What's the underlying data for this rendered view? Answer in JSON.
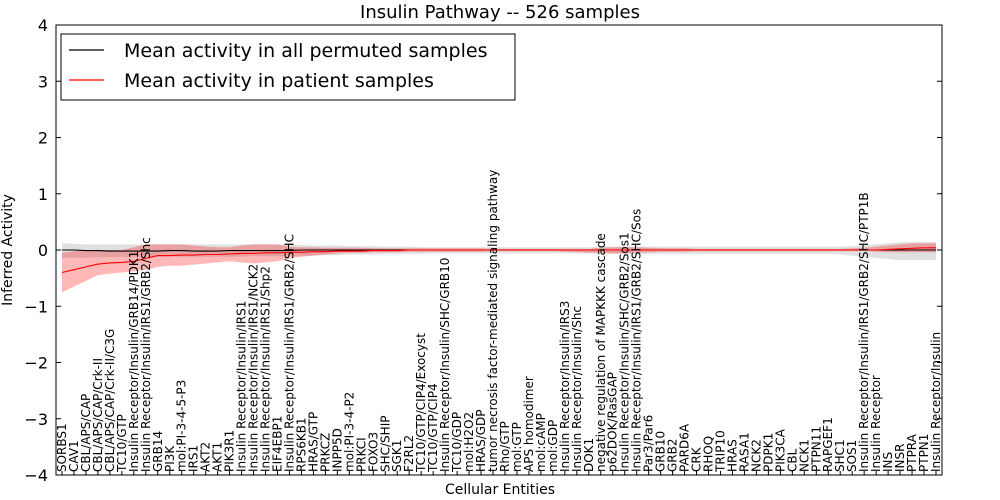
{
  "chart_data": {
    "type": "line",
    "title": "Insulin Pathway -- 526 samples",
    "xlabel": "Cellular Entities",
    "ylabel": "Inferred Activity",
    "ylim": [
      -4,
      4
    ],
    "yticks": [
      "4",
      "3",
      "2",
      "1",
      "0",
      "−1",
      "−2",
      "−3",
      "−4"
    ],
    "ytick_values": [
      4,
      3,
      2,
      1,
      0,
      -1,
      -2,
      -3,
      -4
    ],
    "legend_position": "top-left",
    "categories": [
      "SORBS1",
      "CAV1",
      "CBL/APS/CAP",
      "CBL/APS/CAP/Crk-II",
      "CBL/APS/CAP/Crk-II/C3G",
      "TC10/GTP",
      "Insulin Receptor/Insulin/GRB14/PDK1",
      "Insulin Receptor/Insulin/IRS1/GRB2/Shc",
      "GRB14",
      "PI3K",
      "mol:PI-3-4-5-P3",
      "IRS1",
      "AKT2",
      "AKT1",
      "PIK3R1",
      "Insulin Receptor/Insulin/IRS1",
      "Insulin Receptor/Insulin/IRS1/NCK2",
      "Insulin Receptor/Insulin/IRS1/Shp2",
      "EIF4EBP1",
      "Insulin Receptor/Insulin/IRS1/GRB2/SHC",
      "RPS6KB1",
      "HRAS/GTP",
      "PRKCZ",
      "INPP5D",
      "mol:PI-3-4-P2",
      "PRKCI",
      "FOXO3",
      "SHC/SHIP",
      "SGK1",
      "F2RL2",
      "TC10/GTP/CIP4/Exocyst",
      "TC10/GTP/CIP4",
      "Insulin Receptor/Insulin/SHC/GRB10",
      "TC10/GDP",
      "mol:H2O2",
      "HRAS/GDP",
      "tumor necrosis factor-mediated signaling pathway",
      "Rho/GTP",
      "mol:GTP",
      "APS homodimer",
      "mol:cAMP",
      "mol:GDP",
      "Insulin Receptor/Insulin/IRS3",
      "Insulin Receptor/Insulin/Shc",
      "DOK1",
      "negative regulation of MAPKKK cascade",
      "p62DOK/RasGAP",
      "Insulin Receptor/Insulin/SHC/GRB2/Sos1",
      "Insulin Receptor/Insulin/IRS1/GRB2/SHC/Sos",
      "Par3/Par6",
      "GRB10",
      "GRB2",
      "PARD6A",
      "CRK",
      "RHOQ",
      "TRIP10",
      "HRAS",
      "RASA1",
      "NCK2",
      "PDPK1",
      "PIK3CA",
      "CBL",
      "NCK1",
      "PTPN11",
      "RAPGEF1",
      "SHC1",
      "SOS1",
      "Insulin Receptor/Insulin/IRS1/GRB2/SHC/PTP1B",
      "Insulin Receptor",
      "INS",
      "INSR",
      "PTPRA",
      "PTPN1",
      "Insulin Receptor/Insulin"
    ],
    "series": [
      {
        "name": "Mean activity in all permuted samples",
        "color": "#000000",
        "values": [
          0,
          0,
          -0.01,
          -0.01,
          -0.02,
          -0.02,
          -0.02,
          -0.02,
          -0.02,
          -0.01,
          -0.01,
          -0.02,
          -0.02,
          -0.02,
          -0.01,
          -0.01,
          -0.01,
          -0.01,
          -0.01,
          -0.01,
          0,
          0,
          0,
          0,
          0,
          0,
          0,
          0,
          0,
          0,
          0,
          0,
          0,
          0,
          0,
          0,
          0,
          0,
          0,
          0,
          0,
          0,
          0,
          0,
          0,
          0,
          0,
          0,
          0,
          0,
          0,
          0,
          0,
          0,
          0,
          0,
          0,
          0,
          0,
          0,
          0,
          0,
          0,
          0,
          0,
          0,
          0,
          0,
          0,
          0,
          0,
          0,
          0,
          0
        ],
        "band_upper": [
          0.12,
          0.11,
          0.1,
          0.1,
          0.1,
          0.1,
          0.1,
          0.1,
          0.1,
          0.1,
          0.1,
          0.1,
          0.1,
          0.1,
          0.1,
          0.1,
          0.1,
          0.1,
          0.1,
          0.1,
          0.09,
          0.08,
          0.08,
          0.08,
          0.07,
          0.07,
          0.07,
          0.06,
          0.06,
          0.06,
          0.05,
          0.05,
          0.05,
          0.05,
          0.05,
          0.05,
          0.05,
          0.05,
          0.05,
          0.05,
          0.05,
          0.05,
          0.05,
          0.05,
          0.05,
          0.06,
          0.06,
          0.06,
          0.06,
          0.06,
          0.06,
          0.06,
          0.06,
          0.06,
          0.06,
          0.06,
          0.06,
          0.06,
          0.06,
          0.06,
          0.06,
          0.06,
          0.06,
          0.06,
          0.06,
          0.06,
          0.07,
          0.08,
          0.1,
          0.12,
          0.14,
          0.14,
          0.14,
          0.14
        ],
        "band_lower": [
          -0.14,
          -0.14,
          -0.14,
          -0.13,
          -0.13,
          -0.12,
          -0.12,
          -0.12,
          -0.12,
          -0.12,
          -0.12,
          -0.12,
          -0.12,
          -0.12,
          -0.12,
          -0.12,
          -0.11,
          -0.11,
          -0.11,
          -0.1,
          -0.1,
          -0.1,
          -0.09,
          -0.09,
          -0.08,
          -0.08,
          -0.08,
          -0.07,
          -0.07,
          -0.07,
          -0.07,
          -0.06,
          -0.06,
          -0.06,
          -0.06,
          -0.06,
          -0.06,
          -0.06,
          -0.06,
          -0.06,
          -0.06,
          -0.06,
          -0.06,
          -0.06,
          -0.06,
          -0.07,
          -0.07,
          -0.07,
          -0.07,
          -0.07,
          -0.07,
          -0.07,
          -0.07,
          -0.07,
          -0.07,
          -0.07,
          -0.07,
          -0.07,
          -0.07,
          -0.07,
          -0.07,
          -0.07,
          -0.07,
          -0.07,
          -0.07,
          -0.08,
          -0.1,
          -0.12,
          -0.14,
          -0.16,
          -0.18,
          -0.18,
          -0.18,
          -0.18
        ]
      },
      {
        "name": "Mean activity in patient samples",
        "color": "#ff0000",
        "values": [
          -0.4,
          -0.35,
          -0.3,
          -0.25,
          -0.23,
          -0.22,
          -0.2,
          -0.15,
          -0.1,
          -0.1,
          -0.09,
          -0.09,
          -0.08,
          -0.08,
          -0.07,
          -0.06,
          -0.06,
          -0.05,
          -0.05,
          -0.04,
          -0.04,
          -0.03,
          -0.03,
          -0.02,
          -0.02,
          -0.02,
          -0.01,
          -0.01,
          -0.01,
          0,
          0,
          0,
          0,
          0,
          0,
          0,
          0,
          0,
          0,
          0,
          0,
          0,
          0,
          0,
          0,
          0,
          0,
          0,
          0,
          0,
          0,
          0,
          0,
          0,
          0,
          0,
          0,
          0,
          0,
          0,
          0,
          0,
          0,
          0,
          0,
          0,
          0,
          0,
          0,
          0.01,
          0.02,
          0.03,
          0.04,
          0.04
        ],
        "band_upper": [
          -0.05,
          -0.02,
          -0.01,
          0,
          0,
          0,
          0.05,
          0.1,
          0.1,
          0.1,
          0.1,
          0.08,
          0.06,
          0.05,
          0.05,
          0.08,
          0.1,
          0.1,
          0.1,
          0.06,
          0.05,
          0.05,
          0.04,
          0.04,
          0.04,
          0.04,
          0.03,
          0.03,
          0.03,
          0.03,
          0.03,
          0.03,
          0.03,
          0.03,
          0.03,
          0.03,
          0.02,
          0.02,
          0.02,
          0.02,
          0.02,
          0.02,
          0.02,
          0.02,
          0.02,
          0.04,
          0.05,
          0.05,
          0.05,
          0.04,
          0.03,
          0.03,
          0.03,
          0.02,
          0.02,
          0.02,
          0.02,
          0.02,
          0.02,
          0.02,
          0.02,
          0.02,
          0.02,
          0.02,
          0.02,
          0.02,
          0.03,
          0.04,
          0.06,
          0.08,
          0.1,
          0.12,
          0.12,
          0.12
        ],
        "band_lower": [
          -0.75,
          -0.65,
          -0.55,
          -0.45,
          -0.42,
          -0.4,
          -0.38,
          -0.35,
          -0.3,
          -0.28,
          -0.28,
          -0.26,
          -0.24,
          -0.22,
          -0.2,
          -0.22,
          -0.24,
          -0.22,
          -0.2,
          -0.15,
          -0.12,
          -0.1,
          -0.08,
          -0.06,
          -0.05,
          -0.05,
          -0.04,
          -0.04,
          -0.04,
          -0.03,
          -0.03,
          -0.03,
          -0.03,
          -0.03,
          -0.03,
          -0.03,
          -0.02,
          -0.02,
          -0.02,
          -0.02,
          -0.02,
          -0.02,
          -0.03,
          -0.04,
          -0.05,
          -0.05,
          -0.06,
          -0.06,
          -0.05,
          -0.04,
          -0.03,
          -0.03,
          -0.03,
          -0.02,
          -0.02,
          -0.02,
          -0.02,
          -0.02,
          -0.02,
          -0.02,
          -0.02,
          -0.02,
          -0.02,
          -0.02,
          -0.02,
          -0.02,
          -0.02,
          -0.02,
          -0.03,
          -0.04,
          -0.04,
          -0.04,
          -0.04,
          -0.04
        ]
      }
    ]
  }
}
